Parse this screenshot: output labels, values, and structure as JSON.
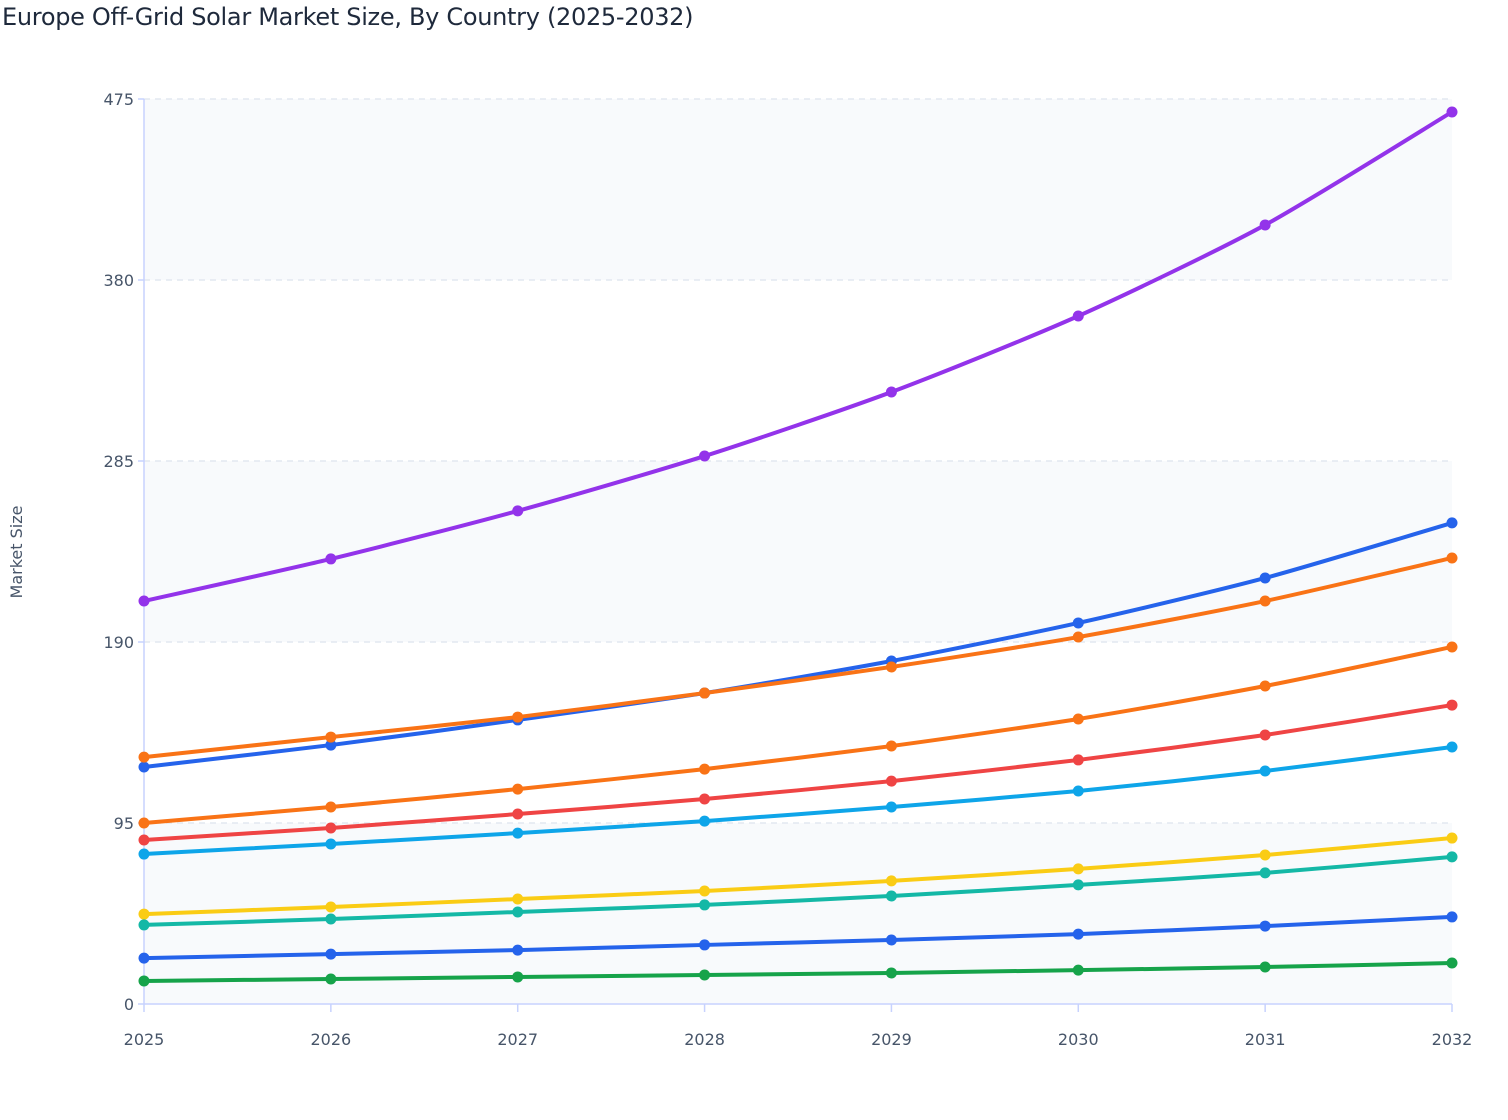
{
  "chart_data": {
    "type": "line",
    "title": "Europe Off-Grid Solar Market Size, By Country (2025-2032)",
    "xlabel": "",
    "ylabel": "Market Size",
    "x": [
      "2025",
      "2026",
      "2027",
      "2028",
      "2029",
      "2030",
      "2031",
      "2032"
    ],
    "ylim": [
      0,
      475
    ],
    "yticks": [
      0,
      95,
      190,
      285,
      380,
      475
    ],
    "grid": true,
    "legend": "none",
    "series": [
      {
        "color": "#9333ea",
        "values": [
          211.5,
          233.6,
          258.8,
          287.6,
          321.2,
          361.1,
          408.9,
          468.2
        ]
      },
      {
        "color": "#2563eb",
        "values": [
          124.4,
          135.9,
          149.1,
          163.2,
          180.0,
          200.0,
          223.6,
          252.5
        ]
      },
      {
        "color": "#f97316",
        "values": [
          129.6,
          140.1,
          150.6,
          163.2,
          176.9,
          192.6,
          211.5,
          234.1
        ]
      },
      {
        "color": "#f97316",
        "values": [
          95.0,
          103.4,
          112.8,
          123.3,
          135.4,
          149.6,
          166.9,
          187.4
        ]
      },
      {
        "color": "#ef4444",
        "values": [
          86.1,
          92.4,
          99.7,
          107.6,
          117.0,
          128.1,
          141.2,
          156.9
        ]
      },
      {
        "color": "#0ea5e9",
        "values": [
          78.7,
          84.0,
          89.7,
          96.0,
          103.4,
          111.8,
          122.3,
          134.9
        ]
      },
      {
        "color": "#facc15",
        "values": [
          47.2,
          50.9,
          55.1,
          59.3,
          64.6,
          70.9,
          78.2,
          87.1
        ]
      },
      {
        "color": "#14b8a6",
        "values": [
          41.5,
          44.6,
          48.3,
          52.0,
          56.7,
          62.5,
          68.8,
          77.2
        ]
      },
      {
        "color": "#2563eb",
        "values": [
          24.1,
          26.2,
          28.3,
          31.0,
          33.6,
          36.7,
          40.9,
          45.7
        ]
      },
      {
        "color": "#16a34a",
        "values": [
          12.1,
          13.1,
          14.2,
          15.2,
          16.3,
          17.8,
          19.4,
          21.5
        ]
      }
    ]
  }
}
